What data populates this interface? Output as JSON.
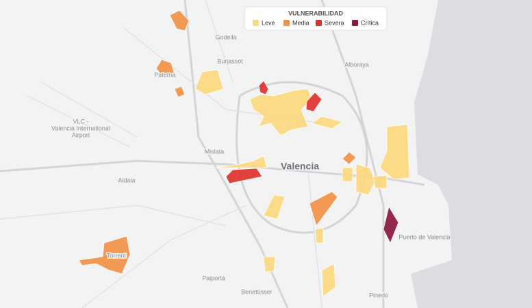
{
  "legend": {
    "title": "VULNERABILIDAD",
    "items": [
      {
        "label": "Leve",
        "color": "#fcd97f"
      },
      {
        "label": "Media",
        "color": "#f39249"
      },
      {
        "label": "Severa",
        "color": "#e0322d"
      },
      {
        "label": "Crítica",
        "color": "#8b1a3d"
      }
    ]
  },
  "places": [
    {
      "label": "Godella"
    },
    {
      "label": "Burjassot"
    },
    {
      "label": "Alboraya"
    },
    {
      "label": "Paterna"
    },
    {
      "label": "VLC -"
    },
    {
      "label": "Valencia International"
    },
    {
      "label": "Airport"
    },
    {
      "label": "Mislata"
    },
    {
      "label": "Valencia"
    },
    {
      "label": "Aldaia"
    },
    {
      "label": "Torrent"
    },
    {
      "label": "Paiporta"
    },
    {
      "label": "Benetússer"
    },
    {
      "label": "Pinedo"
    },
    {
      "label": "Puerto de Valencia"
    }
  ]
}
